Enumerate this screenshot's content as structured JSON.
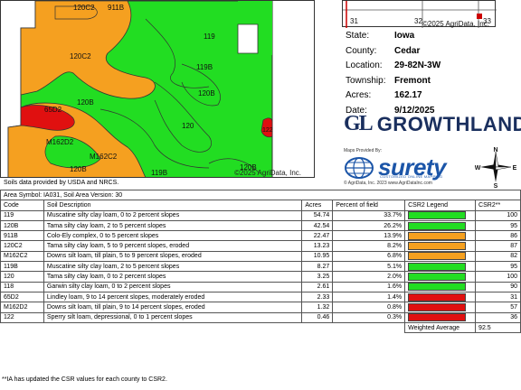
{
  "map": {
    "labels": [
      "120C2",
      "911B",
      "119",
      "120C2",
      "119B",
      "120B",
      "120B",
      "65D2",
      "120",
      "122",
      "M162D2",
      "M162C2",
      "120B",
      "119B",
      "120B"
    ],
    "copyright": "©2025 AgriData, Inc.",
    "colors": {
      "green": "#22dd22",
      "orange": "#f5a020",
      "red": "#e01010"
    }
  },
  "township": {
    "labels": [
      "31",
      "32",
      "33"
    ],
    "copyright": "©2025 AgriData, Inc."
  },
  "info": {
    "state_label": "State:",
    "state": "Iowa",
    "county_label": "County:",
    "county": "Cedar",
    "location_label": "Location:",
    "location": "29-82N-3W",
    "township_label": "Township:",
    "township": "Fremont",
    "acres_label": "Acres:",
    "acres": "162.17",
    "date_label": "Date:",
    "date": "9/12/2025"
  },
  "brand": {
    "mark": "GL",
    "name": "GROWTHLAND",
    "maps_provided": "Maps Provided By:",
    "surety": "surety",
    "surety_tag": "CUSTOMIZED ONLINE MAPPING",
    "surety_sub": "© AgriData, Inc. 2023          www.AgriDataInc.com",
    "compass": {
      "n": "N",
      "s": "S",
      "e": "E",
      "w": "W"
    }
  },
  "table": {
    "source": "Soils data provided by USDA and NRCS.",
    "area_symbol": "Area Symbol: IA031, Soil Area Version: 30",
    "headers": [
      "Code",
      "Soil Description",
      "Acres",
      "Percent of field",
      "CSR2 Legend",
      "CSR2**"
    ],
    "rows": [
      {
        "code": "119",
        "desc": "Muscatine silty clay loam, 0 to 2 percent slopes",
        "acres": "54.74",
        "pct": "33.7%",
        "color": "#22dd22",
        "csr2": "100"
      },
      {
        "code": "120B",
        "desc": "Tama silty clay loam, 2 to 5 percent slopes",
        "acres": "42.54",
        "pct": "26.2%",
        "color": "#22dd22",
        "csr2": "95"
      },
      {
        "code": "911B",
        "desc": "Colo-Ely complex, 0 to 5 percent slopes",
        "acres": "22.47",
        "pct": "13.9%",
        "color": "#f5a020",
        "csr2": "86"
      },
      {
        "code": "120C2",
        "desc": "Tama silty clay loam, 5 to 9 percent slopes, eroded",
        "acres": "13.23",
        "pct": "8.2%",
        "color": "#f5a020",
        "csr2": "87"
      },
      {
        "code": "M162C2",
        "desc": "Downs silt loam, till plain, 5 to 9 percent slopes, eroded",
        "acres": "10.95",
        "pct": "6.8%",
        "color": "#f5a020",
        "csr2": "82"
      },
      {
        "code": "119B",
        "desc": "Muscatine silty clay loam, 2 to 5 percent slopes",
        "acres": "8.27",
        "pct": "5.1%",
        "color": "#22dd22",
        "csr2": "95"
      },
      {
        "code": "120",
        "desc": "Tama silty clay loam, 0 to 2 percent slopes",
        "acres": "3.25",
        "pct": "2.0%",
        "color": "#22dd22",
        "csr2": "100"
      },
      {
        "code": "118",
        "desc": "Garwin silty clay loam, 0 to 2 percent slopes",
        "acres": "2.61",
        "pct": "1.6%",
        "color": "#22dd22",
        "csr2": "90"
      },
      {
        "code": "65D2",
        "desc": "Lindley loam, 9 to 14 percent slopes, moderately eroded",
        "acres": "2.33",
        "pct": "1.4%",
        "color": "#e01010",
        "csr2": "31"
      },
      {
        "code": "M162D2",
        "desc": "Downs silt loam, till plain, 9 to 14 percent slopes, eroded",
        "acres": "1.32",
        "pct": "0.8%",
        "color": "#e01010",
        "csr2": "57"
      },
      {
        "code": "122",
        "desc": "Sperry silt loam, depressional, 0 to 1 percent slopes",
        "acres": "0.46",
        "pct": "0.3%",
        "color": "#e01010",
        "csr2": "36"
      }
    ],
    "weighted_label": "Weighted Average",
    "weighted_value": "92.5",
    "footnote": "**IA has updated the CSR values for each county to CSR2."
  }
}
